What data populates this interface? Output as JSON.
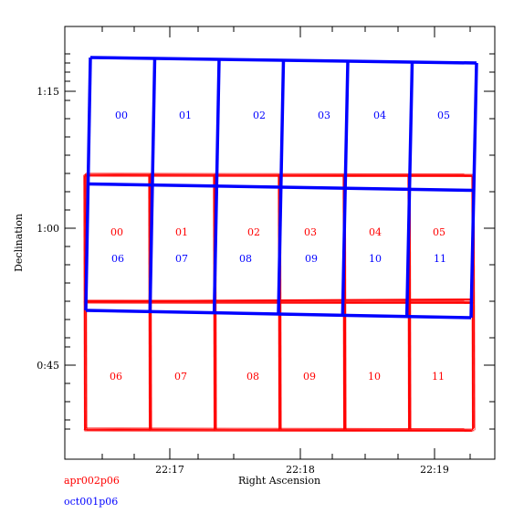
{
  "chart_data": {
    "type": "scatter",
    "plot": "footprint",
    "xlabel": "Right Ascension",
    "ylabel": "Declination",
    "x_ticks": [
      "22:17",
      "22:18",
      "22:19"
    ],
    "y_ticks": [
      "0:45",
      "1:00",
      "1:15"
    ],
    "xlim_arcsec_from_22h17m": [
      -46,
      175
    ],
    "ylim_arcmin_declination": [
      35,
      81
    ],
    "series": [
      {
        "name": "apr002p06",
        "color": "#ff0000",
        "chip_labels": [
          "00",
          "01",
          "02",
          "03",
          "04",
          "05",
          "06",
          "07",
          "08",
          "09",
          "10",
          "11"
        ]
      },
      {
        "name": "oct001p06",
        "color": "#0000ff",
        "chip_labels": [
          "00",
          "01",
          "02",
          "03",
          "04",
          "05",
          "06",
          "07",
          "08",
          "09",
          "10",
          "11"
        ]
      }
    ]
  },
  "legend": {
    "red_label": "apr002p06",
    "blue_label": "oct001p06"
  },
  "colors": {
    "red": "#ff0000",
    "blue": "#0000ff",
    "axis": "#000000"
  }
}
